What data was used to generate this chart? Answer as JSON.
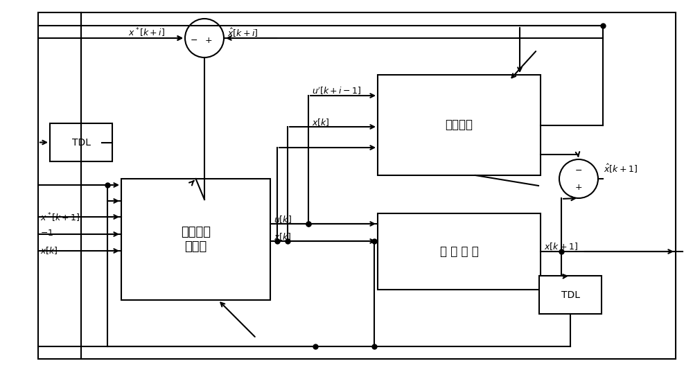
{
  "bg_color": "#ffffff",
  "line_color": "#000000",
  "fig_width": 10.0,
  "fig_height": 5.34,
  "labels": {
    "tdl_left": "TDL",
    "tdl_right": "TDL",
    "neural_controller": "神经网络\n控制器",
    "prediction_model": "预测模型",
    "controlled_object": "被 控 对 象",
    "x_star_ki": "$x^*[k+i]$",
    "x_hat_ki": "$\\hat{x}[k+i]$",
    "u_prime_ki1": "$u'[k+i-1]$",
    "x_k_1": "$x[k]$",
    "x_k_2": "$x[k]$",
    "x_k_3": "$x[k]$",
    "u_k": "$u[k]$",
    "x_k_co": "$x[k]$",
    "x_hat_k1": "$\\hat{x}[k+1]$",
    "x_k1_out": "$x[k+1]$",
    "input_x_star": "$x^*[k+1]$",
    "input_minus1": "$-1$",
    "input_xk": "$x[k]$"
  }
}
